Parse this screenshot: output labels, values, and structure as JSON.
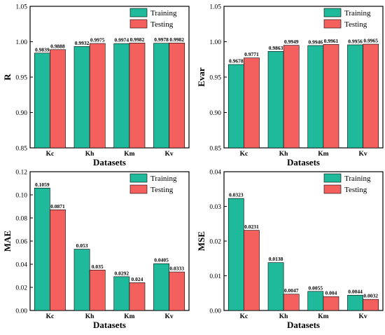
{
  "colors": {
    "training": "#1fb99b",
    "testing": "#f4605d"
  },
  "chart_data": [
    {
      "type": "bar",
      "panel": "R",
      "categories": [
        "Kc",
        "Kh",
        "Km",
        "Kv"
      ],
      "series": [
        {
          "name": "Training",
          "values": [
            0.9839,
            0.9932,
            0.9974,
            0.9978
          ],
          "labels": [
            "0.9839",
            "0.9932",
            "0.9974",
            "0.9978"
          ]
        },
        {
          "name": "Testing",
          "values": [
            0.9888,
            0.9975,
            0.9982,
            0.9982
          ],
          "labels": [
            "0.9888",
            "0.9975",
            "0.9982",
            "0.9982"
          ]
        }
      ],
      "xlabel": "Datasets",
      "ylabel": "R",
      "ylim": [
        0.85,
        1.05
      ],
      "yticks": [
        "0.85",
        "0.90",
        "0.95",
        "1.00",
        "1.05"
      ],
      "legend": "top-right"
    },
    {
      "type": "bar",
      "panel": "Evar",
      "categories": [
        "Kc",
        "Kh",
        "Km",
        "Kv"
      ],
      "series": [
        {
          "name": "Training",
          "values": [
            0.9678,
            0.9863,
            0.9946,
            0.9956
          ],
          "labels": [
            "0.9678",
            "0.9863",
            "0.9946",
            "0.9956"
          ]
        },
        {
          "name": "Testing",
          "values": [
            0.9771,
            0.9949,
            0.9961,
            0.9965
          ],
          "labels": [
            "0.9771",
            "0.9949",
            "0.9961",
            "0.9965"
          ]
        }
      ],
      "xlabel": "Datasets",
      "ylabel": "Evar",
      "ylim": [
        0.85,
        1.05
      ],
      "yticks": [
        "0.85",
        "0.90",
        "0.95",
        "1.00",
        "1.05"
      ],
      "legend": "top-right"
    },
    {
      "type": "bar",
      "panel": "MAE",
      "categories": [
        "Kc",
        "Kh",
        "Km",
        "Kv"
      ],
      "series": [
        {
          "name": "Training",
          "values": [
            0.1059,
            0.053,
            0.0292,
            0.0405
          ],
          "labels": [
            "0.1059",
            "0.053",
            "0.0292",
            "0.0405"
          ]
        },
        {
          "name": "Testing",
          "values": [
            0.0871,
            0.035,
            0.024,
            0.0333
          ],
          "labels": [
            "0.0871",
            "0.035",
            "0.024",
            "0.0333"
          ]
        }
      ],
      "xlabel": "Datasets",
      "ylabel": "MAE",
      "ylim": [
        0,
        0.12
      ],
      "yticks": [
        "0.00",
        "0.02",
        "0.04",
        "0.06",
        "0.08",
        "0.10",
        "0.12"
      ],
      "legend": "top-right"
    },
    {
      "type": "bar",
      "panel": "MSE",
      "categories": [
        "Kc",
        "Kh",
        "Km",
        "Kv"
      ],
      "series": [
        {
          "name": "Training",
          "values": [
            0.0323,
            0.0138,
            0.0055,
            0.0044
          ],
          "labels": [
            "0.0323",
            "0.0138",
            "0.0055",
            "0.0044"
          ]
        },
        {
          "name": "Testing",
          "values": [
            0.0231,
            0.0047,
            0.004,
            0.0032
          ],
          "labels": [
            "0.0231",
            "0.0047",
            "0.004",
            "0.0032"
          ]
        }
      ],
      "xlabel": "Datasets",
      "ylabel": "MSE",
      "ylim": [
        0,
        0.04
      ],
      "yticks": [
        "0.00",
        "0.01",
        "0.02",
        "0.03",
        "0.04"
      ],
      "legend": "top-right"
    }
  ]
}
